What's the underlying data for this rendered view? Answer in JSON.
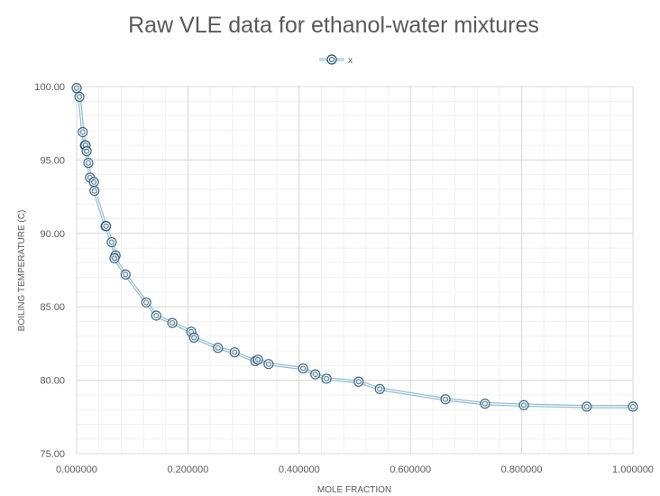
{
  "chart_data": {
    "type": "scatter",
    "title": "Raw VLE data for ethanol-water mixtures",
    "xlabel": "MOLE FRACTION",
    "ylabel": "BOILING TEMPERATURE (C)",
    "xlim": [
      0,
      1
    ],
    "ylim": [
      75,
      100
    ],
    "xticks": [
      "0.000000",
      "0.200000",
      "0.400000",
      "0.600000",
      "0.800000",
      "1.000000"
    ],
    "xtick_values": [
      0,
      0.2,
      0.4,
      0.6,
      0.8,
      1.0
    ],
    "yticks": [
      "75.00",
      "80.00",
      "85.00",
      "90.00",
      "95.00",
      "100.00"
    ],
    "ytick_values": [
      75,
      80,
      85,
      90,
      95,
      100
    ],
    "grid": true,
    "legend_position": "top-center",
    "series": [
      {
        "name": "x",
        "color": "#1f4e6b",
        "line_color": "#8fb8cc",
        "x": [
          0.0,
          0.005,
          0.011,
          0.015,
          0.016,
          0.018,
          0.021,
          0.024,
          0.031,
          0.032,
          0.052,
          0.053,
          0.063,
          0.07,
          0.068,
          0.088,
          0.125,
          0.143,
          0.172,
          0.206,
          0.211,
          0.254,
          0.284,
          0.321,
          0.326,
          0.345,
          0.407,
          0.429,
          0.449,
          0.507,
          0.545,
          0.663,
          0.734,
          0.804,
          0.917,
          1.0
        ],
        "y": [
          99.9,
          99.3,
          96.9,
          96.0,
          96.0,
          95.6,
          94.8,
          93.8,
          93.5,
          92.9,
          90.5,
          90.5,
          89.4,
          88.5,
          88.3,
          87.2,
          85.3,
          84.4,
          83.9,
          83.3,
          82.9,
          82.2,
          81.9,
          81.3,
          81.4,
          81.1,
          80.8,
          80.4,
          80.1,
          79.9,
          79.4,
          78.7,
          78.4,
          78.3,
          78.2,
          78.2
        ]
      }
    ]
  }
}
